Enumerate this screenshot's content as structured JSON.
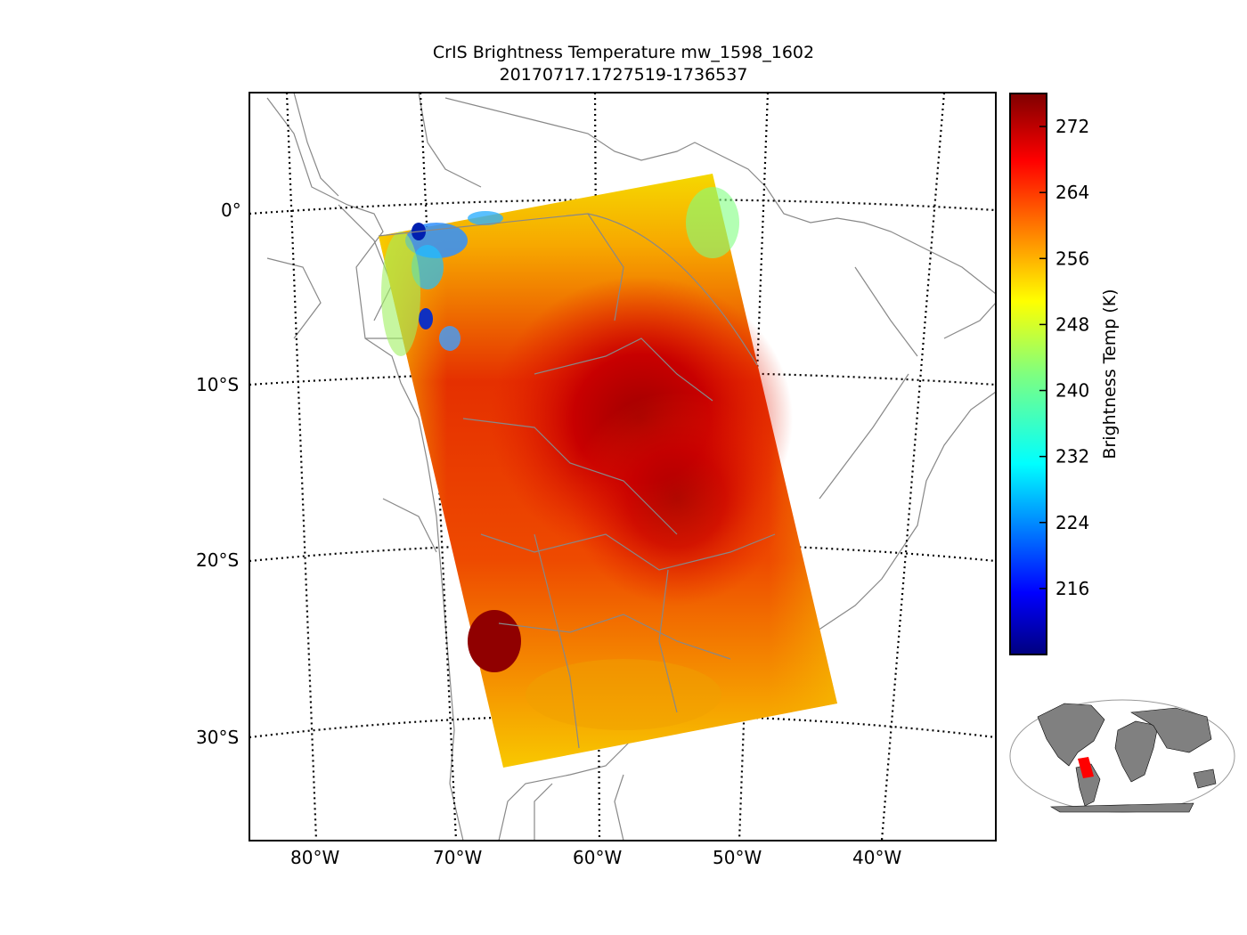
{
  "title": {
    "line1": "CrIS Brightness Temperature mw_1598_1602",
    "line2": "20170717.1727519-1736537"
  },
  "map": {
    "projection": "lambert-conformal",
    "lon_range": [
      -85,
      -32
    ],
    "lat_range": [
      -36,
      6
    ],
    "lat_labels": [
      "0°",
      "10°S",
      "20°S",
      "30°S"
    ],
    "lon_labels": [
      "80°W",
      "70°W",
      "60°W",
      "50°W",
      "40°W"
    ],
    "gridlines": "dotted",
    "coastline_color": "#888888"
  },
  "swath": {
    "corners_lonlat": [
      [
        -76,
        -1.5
      ],
      [
        -52,
        2
      ],
      [
        -43,
        -28
      ],
      [
        -66,
        -32
      ]
    ],
    "hot_core_lonlat": [
      -56,
      -12
    ],
    "cold_cloud_region": "north-west edge",
    "units": "K"
  },
  "colorbar": {
    "label": "Brightness Temp (K)",
    "colormap": "jet",
    "vmin": 208,
    "vmax": 276,
    "ticks": [
      "216",
      "224",
      "232",
      "240",
      "248",
      "256",
      "264",
      "272"
    ]
  },
  "inset": {
    "type": "world-overview",
    "land_color": "#808080",
    "highlight_color": "#ff0000"
  }
}
